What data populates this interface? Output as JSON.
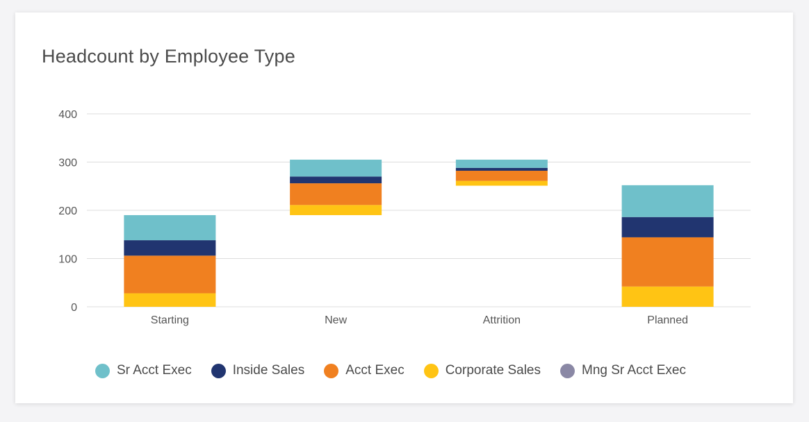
{
  "chart_data": {
    "type": "bar",
    "title": "Headcount by Employee Type",
    "categories": [
      "Starting",
      "New",
      "Attrition",
      "Planned"
    ],
    "ylim": [
      0,
      400
    ],
    "yticks": [
      0,
      100,
      200,
      300,
      400
    ],
    "grid": true,
    "legend_position": "bottom",
    "series": [
      {
        "name": "Corporate Sales",
        "color": "#ffc414",
        "segments": [
          [
            0,
            28
          ],
          [
            190,
            211
          ],
          [
            251,
            261
          ],
          [
            0,
            42
          ]
        ]
      },
      {
        "name": "Acct Exec",
        "color": "#f08020",
        "segments": [
          [
            28,
            106
          ],
          [
            211,
            256
          ],
          [
            261,
            282
          ],
          [
            42,
            144
          ]
        ]
      },
      {
        "name": "Inside Sales",
        "color": "#213570",
        "segments": [
          [
            106,
            138
          ],
          [
            256,
            270
          ],
          [
            282,
            288
          ],
          [
            144,
            186
          ]
        ]
      },
      {
        "name": "Sr Acct Exec",
        "color": "#6fc0ca",
        "segments": [
          [
            138,
            190
          ],
          [
            270,
            305
          ],
          [
            288,
            305
          ],
          [
            186,
            252
          ]
        ]
      },
      {
        "name": "Mng Sr Acct Exec",
        "color": "#8a88a5",
        "segments": [
          [
            190,
            190
          ],
          [
            305,
            305
          ],
          [
            305,
            305
          ],
          [
            252,
            252
          ]
        ]
      }
    ]
  },
  "legend": [
    {
      "label": "Sr Acct Exec",
      "color": "#6fc0ca"
    },
    {
      "label": "Inside Sales",
      "color": "#213570"
    },
    {
      "label": "Acct Exec",
      "color": "#f08020"
    },
    {
      "label": "Corporate Sales",
      "color": "#ffc414"
    },
    {
      "label": "Mng Sr Acct Exec",
      "color": "#8a88a5"
    }
  ]
}
